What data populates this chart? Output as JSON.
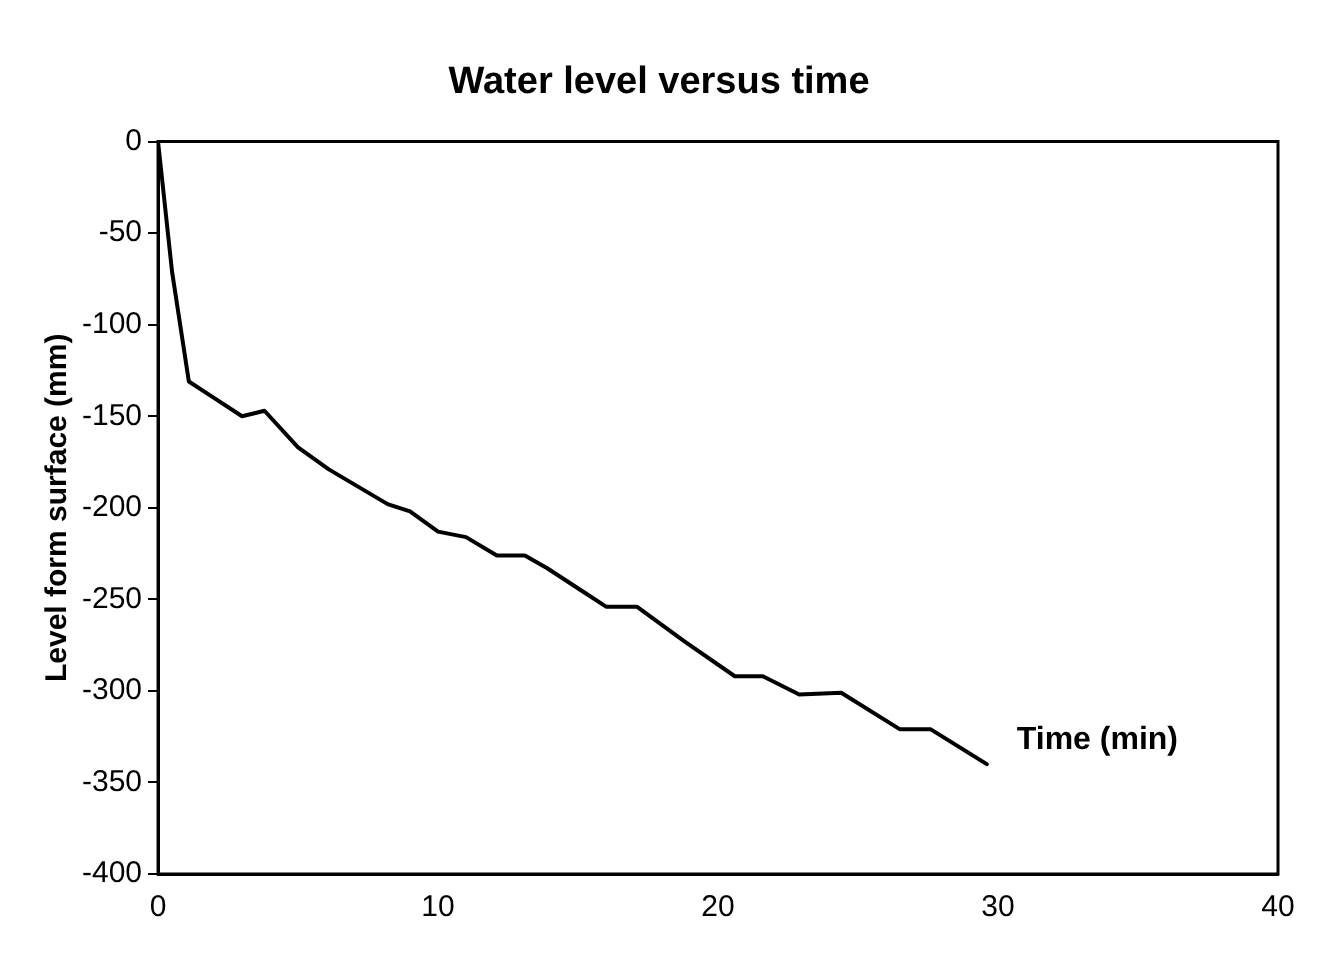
{
  "chart_data": {
    "type": "line",
    "title": "Water level versus time",
    "xlabel": "Time (min)",
    "ylabel": "Level form surface (mm)",
    "x": [
      0,
      0.5,
      1.1,
      1.9,
      3.0,
      3.8,
      5.0,
      6.1,
      8.2,
      9.0,
      10.0,
      11.0,
      12.1,
      13.1,
      13.9,
      15.2,
      16.0,
      17.1,
      18.8,
      20.6,
      21.6,
      22.9,
      24.4,
      26.5,
      27.6,
      29.6
    ],
    "series": [
      {
        "color": "#000000",
        "values": [
          0,
          -71,
          -131,
          -139,
          -150,
          -147,
          -167,
          -179,
          -198,
          -202,
          -213,
          -216,
          -226,
          -226,
          -233,
          -246,
          -254,
          -254,
          -273,
          -292,
          -292,
          -302,
          -301,
          -321,
          -321,
          -340
        ]
      }
    ],
    "xlim": [
      0,
      40
    ],
    "xticks": [
      0,
      10,
      20,
      30,
      40
    ],
    "ylim": [
      -400,
      0
    ],
    "yticks": [
      0,
      -50,
      -100,
      -150,
      -200,
      -250,
      -300,
      -350,
      -400
    ],
    "grid": false,
    "legend": false,
    "marker": "none",
    "line_style": "solid"
  }
}
